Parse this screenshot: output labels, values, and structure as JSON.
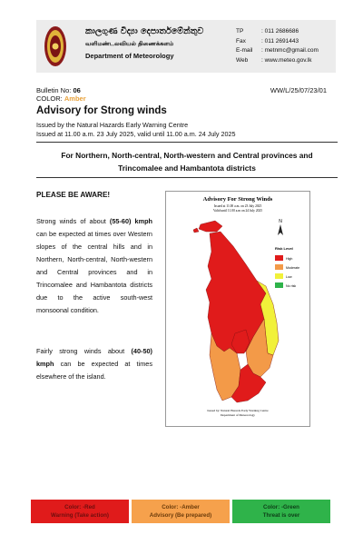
{
  "header": {
    "sinhala": "කාලගුණ විද්‍යා දෙපාර්තමේන්තුව",
    "tamil": "வளிமண்டலவியல் திணைக்களம்",
    "english": "Department of Meteorology",
    "contact": [
      {
        "key": "TP",
        "value": ": 011 2686686"
      },
      {
        "key": "Fax",
        "value": ": 011 2691443"
      },
      {
        "key": "E-mail",
        "value": ": metnmc@gmail.com"
      },
      {
        "key": "Web",
        "value": ": www.meteo.gov.lk"
      }
    ]
  },
  "bulletin": {
    "no_label": "Bulletin No:",
    "no_value": "06",
    "color_label": "COLOR:",
    "color_value": "Amber",
    "ref": "WW/L/25/07/23/01"
  },
  "advisory": {
    "title": "Advisory for Strong winds",
    "issued_by": "Issued by the Natural Hazards Early Warning Centre",
    "issued_at": "Issued at 11.00 a.m. 23 July 2025, valid until 11.00 a.m. 24 July 2025"
  },
  "region_line1": "For Northern, North-central, North-western and Central provinces and",
  "region_line2": "Trincomalee and Hambantota districts",
  "aware": "PLEASE BE AWARE!",
  "para1": {
    "pre": "Strong winds of about ",
    "speed": "(55-60) kmph",
    "post": " can be expected at times over Western slopes of the central hills and in Northern, North-central, North-western and Central provinces and in Trincomalee and Hambantota districts due to the active south-west monsoonal condition."
  },
  "para2": {
    "pre": "Fairly strong winds about ",
    "speed": "(40-50) kmph",
    "post": " can be expected at times elsewhere of the island."
  },
  "map": {
    "title": "Advisory For Strong Winds",
    "issued": "Issued at 11.00 a.m. on 23 July 2025",
    "valid": "Valid until 11.00 a.m on 24 July 2025",
    "north_label": "N",
    "legend_title": "Risk Level",
    "legend": [
      {
        "label": "High",
        "color": "#e01b1b"
      },
      {
        "label": "Moderate",
        "color": "#f39a48"
      },
      {
        "label": "Low",
        "color": "#f1f13a"
      },
      {
        "label": "No risk",
        "color": "#2fb34a"
      }
    ],
    "footer1": "Issued by: Natural Hazards Early Warning Centre",
    "footer2": "Department of Meteorology"
  },
  "legend_bars": [
    {
      "line1": "Color: -Red",
      "line2": "Warning (Take action)",
      "color": "#e01b1b"
    },
    {
      "line1": "Color: -Amber",
      "line2": "Advisory (Be prepared)",
      "color": "#f6a14c"
    },
    {
      "line1": "Color: -Green",
      "line2": "Threat is over",
      "color": "#2fb34a"
    }
  ]
}
